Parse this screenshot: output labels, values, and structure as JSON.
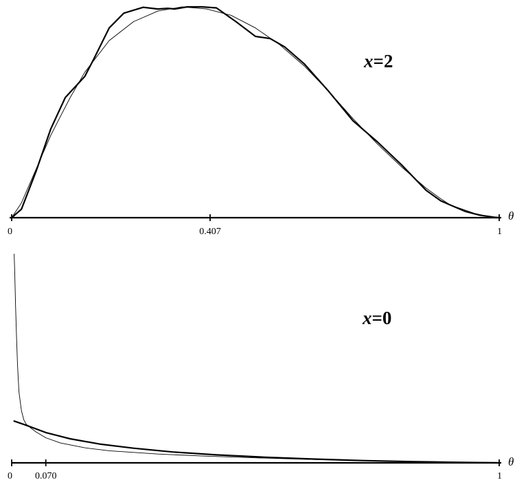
{
  "chart_data": [
    {
      "type": "line",
      "panel": "top",
      "title_var": "x",
      "title_rest": "=2",
      "xlabel": "θ",
      "xlim": [
        0,
        1
      ],
      "ticks": [
        {
          "value": 0,
          "label": "0"
        },
        {
          "value": 0.407,
          "label": "0.407"
        },
        {
          "value": 1,
          "label": "1"
        }
      ],
      "ylim": [
        0,
        1
      ],
      "series": [
        {
          "style": "thick",
          "x": [
            0.0,
            0.02,
            0.05,
            0.08,
            0.11,
            0.15,
            0.17,
            0.2,
            0.23,
            0.27,
            0.3,
            0.32,
            0.335,
            0.36,
            0.39,
            0.42,
            0.46,
            0.5,
            0.53,
            0.56,
            0.6,
            0.65,
            0.7,
            0.75,
            0.8,
            0.85,
            0.88,
            0.9,
            0.93,
            0.96,
            0.99,
            1.0
          ],
          "y": [
            0.0,
            0.04,
            0.22,
            0.42,
            0.57,
            0.67,
            0.76,
            0.9,
            0.97,
            0.998,
            0.99,
            0.993,
            0.99,
            1.0,
            1.0,
            0.995,
            0.93,
            0.86,
            0.85,
            0.81,
            0.73,
            0.6,
            0.46,
            0.36,
            0.25,
            0.13,
            0.08,
            0.06,
            0.03,
            0.012,
            0.002,
            0.0
          ]
        },
        {
          "style": "thin",
          "x": [
            0.0,
            0.02,
            0.05,
            0.08,
            0.1,
            0.12,
            0.15,
            0.2,
            0.25,
            0.3,
            0.35,
            0.4,
            0.45,
            0.5,
            0.55,
            0.6,
            0.65,
            0.7,
            0.75,
            0.8,
            0.85,
            0.88,
            0.9,
            0.95,
            0.98,
            1.0
          ],
          "y": [
            0.0,
            0.07,
            0.23,
            0.39,
            0.48,
            0.57,
            0.69,
            0.84,
            0.93,
            0.98,
            1.0,
            0.99,
            0.96,
            0.9,
            0.82,
            0.72,
            0.6,
            0.47,
            0.35,
            0.24,
            0.14,
            0.09,
            0.06,
            0.02,
            0.005,
            0.0
          ]
        }
      ]
    },
    {
      "type": "line",
      "panel": "bottom",
      "title_var": "x",
      "title_rest": "=0",
      "xlabel": "θ",
      "xlim": [
        0,
        1
      ],
      "ticks": [
        {
          "value": 0,
          "label": "0"
        },
        {
          "value": 0.07,
          "label": "0.070"
        },
        {
          "value": 1,
          "label": "1"
        }
      ],
      "ylim": [
        0,
        1
      ],
      "series": [
        {
          "style": "thick",
          "x": [
            0.005,
            0.03,
            0.07,
            0.12,
            0.18,
            0.25,
            0.33,
            0.42,
            0.52,
            0.62,
            0.72,
            0.82,
            0.9,
            1.0
          ],
          "y": [
            0.2,
            0.18,
            0.145,
            0.115,
            0.09,
            0.07,
            0.052,
            0.038,
            0.027,
            0.018,
            0.011,
            0.006,
            0.003,
            0.0
          ]
        },
        {
          "style": "thin",
          "x": [
            0.005,
            0.006,
            0.007,
            0.008,
            0.01,
            0.012,
            0.015,
            0.02,
            0.025,
            0.03,
            0.04,
            0.05,
            0.07,
            0.1,
            0.15,
            0.2,
            0.3,
            0.4,
            0.5,
            0.6,
            0.7,
            0.8,
            0.9,
            1.0
          ],
          "y": [
            1.0,
            0.93,
            0.84,
            0.75,
            0.6,
            0.47,
            0.34,
            0.25,
            0.205,
            0.185,
            0.165,
            0.148,
            0.12,
            0.095,
            0.072,
            0.058,
            0.042,
            0.032,
            0.024,
            0.017,
            0.011,
            0.006,
            0.003,
            0.0
          ]
        }
      ]
    }
  ]
}
